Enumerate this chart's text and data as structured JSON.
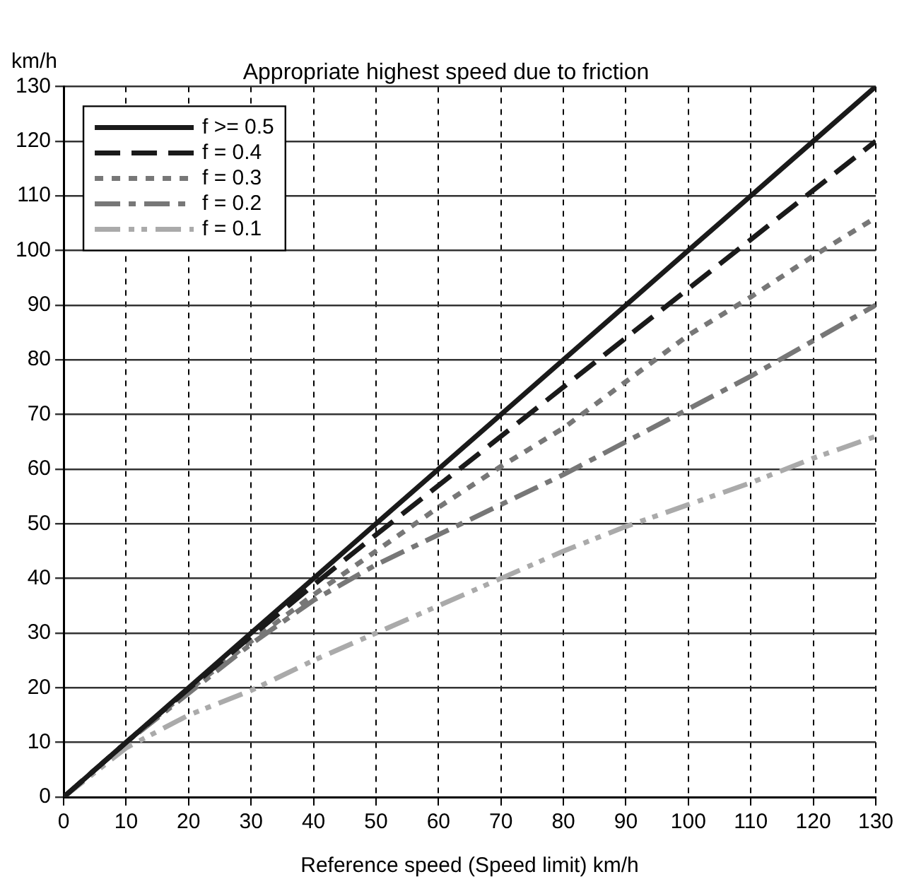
{
  "chart_data": {
    "type": "line",
    "title": "Appropriate highest speed due to friction",
    "xlabel": "Reference speed (Speed limit) km/h",
    "ylabel": "km/h",
    "x": [
      0,
      10,
      20,
      30,
      40,
      50,
      60,
      70,
      80,
      90,
      100,
      110,
      120,
      130
    ],
    "xlim": [
      0,
      130
    ],
    "xticks": [
      0,
      10,
      20,
      30,
      40,
      50,
      60,
      70,
      80,
      90,
      100,
      110,
      120,
      130
    ],
    "ylim": [
      0,
      130
    ],
    "yticks": [
      0,
      10,
      20,
      30,
      40,
      50,
      60,
      70,
      80,
      90,
      100,
      110,
      120,
      130
    ],
    "grid": true,
    "legend": "top left",
    "marker": "none",
    "series": [
      {
        "name": "f >= 0.5",
        "color": "#1a1a1a",
        "line_style": "solid",
        "values": [
          0,
          10,
          20,
          30,
          40,
          50,
          60,
          70,
          80,
          90,
          100,
          110,
          120,
          130
        ]
      },
      {
        "name": "f = 0.4",
        "color": "#1a1a1a",
        "line_style": "dashed",
        "values": [
          0,
          10,
          19.8,
          29.4,
          38.8,
          48,
          57,
          66,
          75,
          84,
          93,
          102,
          111,
          120
        ]
      },
      {
        "name": "f = 0.3",
        "color": "#777777",
        "line_style": "dotted",
        "values": [
          0,
          10,
          19.5,
          28.5,
          37,
          45,
          53,
          60.5,
          67.5,
          76,
          84.5,
          91.5,
          99,
          106
        ]
      },
      {
        "name": "f = 0.2",
        "color": "#777777",
        "line_style": "dashdot",
        "values": [
          0,
          10,
          19,
          28,
          36,
          42.5,
          48,
          53.5,
          59,
          65,
          71,
          77,
          83.5,
          90
        ]
      },
      {
        "name": "f = 0.1",
        "color": "#aaaaaa",
        "line_style": "dashdotdot",
        "values": [
          0,
          9,
          15,
          19.5,
          25,
          30,
          35,
          40,
          45,
          49.5,
          53.5,
          57.5,
          62,
          66
        ]
      }
    ]
  }
}
